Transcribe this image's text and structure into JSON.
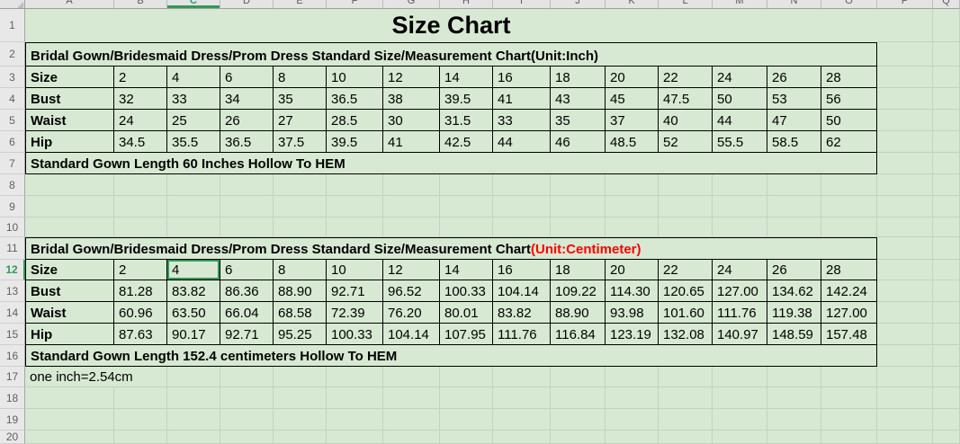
{
  "title": "Size Chart",
  "column_headers": [
    "A",
    "B",
    "C",
    "D",
    "E",
    "F",
    "G",
    "H",
    "I",
    "J",
    "K",
    "L",
    "M",
    "N",
    "O",
    "P",
    "Q"
  ],
  "row_numbers": [
    "1",
    "2",
    "3",
    "4",
    "5",
    "6",
    "7",
    "8",
    "9",
    "10",
    "11",
    "12",
    "13",
    "14",
    "15",
    "16",
    "17",
    "18",
    "19",
    "20"
  ],
  "selection": {
    "cell": "C12",
    "column": "C",
    "row": "12"
  },
  "table_inch": {
    "header": "Bridal Gown/Bridesmaid Dress/Prom Dress Standard Size/Measurement Chart(Unit:Inch)",
    "rows": [
      {
        "label": "Size",
        "values": [
          "2",
          "4",
          "6",
          "8",
          "10",
          "12",
          "14",
          "16",
          "18",
          "20",
          "22",
          "24",
          "26",
          "28"
        ]
      },
      {
        "label": "Bust",
        "values": [
          "32",
          "33",
          "34",
          "35",
          "36.5",
          "38",
          "39.5",
          "41",
          "43",
          "45",
          "47.5",
          "50",
          "53",
          "56"
        ]
      },
      {
        "label": "Waist",
        "values": [
          "24",
          "25",
          "26",
          "27",
          "28.5",
          "30",
          "31.5",
          "33",
          "35",
          "37",
          "40",
          "44",
          "47",
          "50"
        ]
      },
      {
        "label": "Hip",
        "values": [
          "34.5",
          "35.5",
          "36.5",
          "37.5",
          "39.5",
          "41",
          "42.5",
          "44",
          "46",
          "48.5",
          "52",
          "55.5",
          "58.5",
          "62"
        ],
        "flag_indices": [
          0,
          4,
          6,
          9,
          11,
          12
        ]
      }
    ],
    "footer": "Standard Gown Length 60 Inches Hollow To HEM"
  },
  "table_cm": {
    "header_black": "Bridal Gown/Bridesmaid Dress/Prom Dress Standard Size/Measurement Chart",
    "header_red": "(Unit:Centimeter)",
    "rows": [
      {
        "label": "Size",
        "values": [
          "2",
          "4",
          "6",
          "8",
          "10",
          "12",
          "14",
          "16",
          "18",
          "20",
          "22",
          "24",
          "26",
          "28"
        ],
        "selected_index": 1
      },
      {
        "label": "Bust",
        "values": [
          "81.28",
          "83.82",
          "86.36",
          "88.90",
          "92.71",
          "96.52",
          "100.33",
          "104.14",
          "109.22",
          "114.30",
          "120.65",
          "127.00",
          "134.62",
          "142.24"
        ]
      },
      {
        "label": "Waist",
        "values": [
          "60.96",
          "63.50",
          "66.04",
          "68.58",
          "72.39",
          "76.20",
          "80.01",
          "83.82",
          "88.90",
          "93.98",
          "101.60",
          "111.76",
          "119.38",
          "127.00"
        ]
      },
      {
        "label": "Hip",
        "values": [
          "87.63",
          "90.17",
          "92.71",
          "95.25",
          "100.33",
          "104.14",
          "107.95",
          "111.76",
          "116.84",
          "123.19",
          "132.08",
          "140.97",
          "148.59",
          "157.48"
        ]
      }
    ],
    "footer": "Standard Gown Length 152.4 centimeters Hollow To HEM"
  },
  "note": "one inch=2.54cm",
  "colors": {
    "cell_bg": "#d7e9d2",
    "grid_line": "#c4d2c0",
    "selection_green": "#2e9b57",
    "unit_red": "#ff0000",
    "flag_green": "#1e7d3e"
  }
}
